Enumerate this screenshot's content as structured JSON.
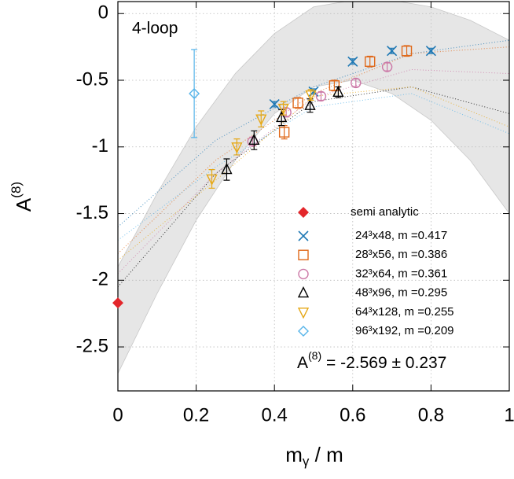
{
  "chart_data": {
    "type": "scatter",
    "annotation": "4-loop",
    "result": {
      "text": "A",
      "sup": "(8)",
      "rest": " = -2.569 ± 0.237"
    },
    "xlabel": {
      "text": "m",
      "sub": "γ",
      "rest": " / m"
    },
    "ylabel": {
      "text": "A",
      "sup": "(8)"
    },
    "xlim": [
      0,
      1
    ],
    "ylim": [
      -2.83,
      0.09
    ],
    "xticks": [
      0,
      0.2,
      0.4,
      0.6,
      0.8,
      1
    ],
    "yticks": [
      0,
      -0.5,
      -1,
      -1.5,
      -2,
      -2.5
    ],
    "grid": true,
    "band": {
      "color": "#e6e6e6",
      "x": [
        0,
        0.1,
        0.2,
        0.3,
        0.4,
        0.5,
        0.6,
        0.7,
        0.8,
        0.9,
        1
      ],
      "upper": [
        -1.9,
        -1.35,
        -0.85,
        -0.45,
        -0.15,
        0.05,
        0.1,
        0.1,
        0.05,
        -0.05,
        -0.2
      ],
      "lower": [
        -2.7,
        -2.1,
        -1.55,
        -1.1,
        -0.75,
        -0.55,
        -0.5,
        -0.6,
        -0.8,
        -1.1,
        -1.5
      ]
    },
    "fit_x": [
      0,
      0.25,
      0.5,
      0.75,
      1
    ],
    "series": [
      {
        "name": "semi analytic",
        "color": "#e3262b",
        "marker": "diamond-filled",
        "x": [
          0
        ],
        "values": [
          -2.17
        ]
      },
      {
        "name": "24³x48, m =0.417",
        "color": "#1f78b4",
        "marker": "x",
        "x": [
          0.4,
          0.5,
          0.6,
          0.7,
          0.8
        ],
        "values": [
          -0.68,
          -0.585,
          -0.36,
          -0.28,
          -0.28
        ],
        "errors": [
          0.02,
          0.02,
          0.02,
          0.02,
          0.02
        ],
        "fit": [
          -1.6,
          -0.95,
          -0.55,
          -0.3,
          -0.2
        ]
      },
      {
        "name": "28³x56, m =0.386",
        "color": "#e0691a",
        "marker": "square",
        "x": [
          0.425,
          0.46,
          0.553,
          0.644,
          0.738
        ],
        "values": [
          -0.89,
          -0.67,
          -0.54,
          -0.36,
          -0.28
        ],
        "errors": [
          0.05,
          0.04,
          0.04,
          0.04,
          0.04
        ],
        "fit": [
          -1.8,
          -1.1,
          -0.6,
          -0.3,
          -0.25
        ]
      },
      {
        "name": "32³x64, m =0.361",
        "color": "#cc79a7",
        "marker": "circle",
        "x": [
          0.344,
          0.43,
          0.519,
          0.608,
          0.688
        ],
        "values": [
          -0.96,
          -0.74,
          -0.62,
          -0.52,
          -0.4
        ],
        "errors": [
          0.03,
          0.03,
          0.03,
          0.03,
          0.03
        ],
        "fit": [
          -1.95,
          -1.2,
          -0.63,
          -0.42,
          -0.45
        ]
      },
      {
        "name": "48³x96, m =0.295",
        "color": "#000000",
        "marker": "triangle",
        "x": [
          0.278,
          0.348,
          0.418,
          0.491,
          0.563
        ],
        "values": [
          -1.17,
          -0.95,
          -0.78,
          -0.69,
          -0.59
        ],
        "errors": [
          0.08,
          0.07,
          0.06,
          0.05,
          0.04
        ],
        "fit": [
          -2.05,
          -1.2,
          -0.66,
          -0.55,
          -0.75
        ]
      },
      {
        "name": "64³x128, m =0.255",
        "color": "#e6a817",
        "marker": "triangle-down",
        "x": [
          0.24,
          0.304,
          0.366,
          0.423,
          0.493
        ],
        "values": [
          -1.24,
          -1.0,
          -0.79,
          -0.71,
          -0.61
        ],
        "errors": [
          0.07,
          0.06,
          0.06,
          0.05,
          0.04
        ],
        "fit": [
          -1.85,
          -1.25,
          -0.62,
          -0.55,
          -0.85
        ]
      },
      {
        "name": "96³x192, m =0.209",
        "color": "#56b4e9",
        "marker": "diamond",
        "x": [
          0.195
        ],
        "values": [
          -0.6
        ],
        "errors": [
          0.33
        ],
        "fit": [
          -1.7,
          -1.15,
          -0.7,
          -0.6,
          -0.9
        ]
      }
    ]
  }
}
